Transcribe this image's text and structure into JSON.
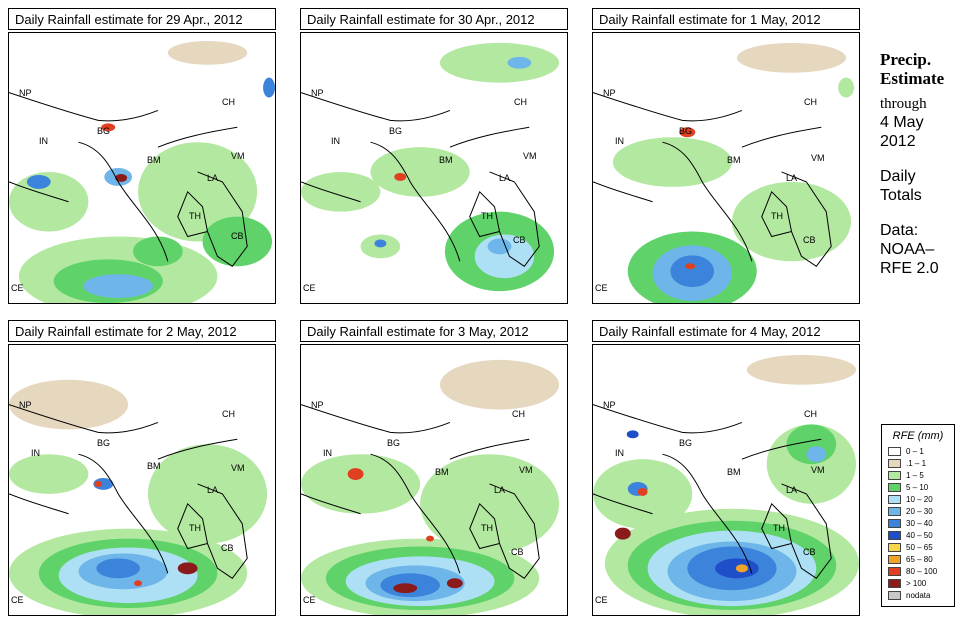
{
  "panels": [
    {
      "title": "Daily Rainfall estimate for  29 Apr., 2012"
    },
    {
      "title": "Daily Rainfall estimate for  30 Apr., 2012"
    },
    {
      "title": "Daily Rainfall estimate for  1 May, 2012"
    },
    {
      "title": "Daily Rainfall estimate for  2 May, 2012"
    },
    {
      "title": "Daily Rainfall estimate for  3 May, 2012"
    },
    {
      "title": "Daily Rainfall estimate for  4 May, 2012"
    }
  ],
  "regions": {
    "np": "NP",
    "in": "IN",
    "bg": "BG",
    "bm": "BM",
    "ch": "CH",
    "vm": "VM",
    "la": "LA",
    "th": "TH",
    "cb": "CB",
    "ce": "CE"
  },
  "side": {
    "heading1": "Precip.",
    "heading2": "Estimate",
    "through": "through",
    "date1": "4 May",
    "date2": "2012",
    "daily1": "Daily",
    "daily2": "Totals",
    "data1": "Data:",
    "data2": "NOAA–",
    "data3": "RFE 2.0"
  },
  "legend": {
    "title": "RFE (mm)",
    "items": [
      {
        "label": "0 – 1",
        "color": "#ffffff"
      },
      {
        "label": ".1 – 1",
        "color": "#e6d7bf"
      },
      {
        "label": "1 – 5",
        "color": "#b3e8a0"
      },
      {
        "label": "5 – 10",
        "color": "#5fd36a"
      },
      {
        "label": "10 – 20",
        "color": "#aee0f5"
      },
      {
        "label": "20 – 30",
        "color": "#6eb6ea"
      },
      {
        "label": "30 – 40",
        "color": "#3c84db"
      },
      {
        "label": "40 – 50",
        "color": "#1f4fc8"
      },
      {
        "label": "50 – 65",
        "color": "#f7d64a"
      },
      {
        "label": "65 – 80",
        "color": "#f2a32a"
      },
      {
        "label": "80 – 100",
        "color": "#e0401f"
      },
      {
        "label": "> 100",
        "color": "#8b1a1a"
      },
      {
        "label": "nodata",
        "color": "#c8c8c8"
      }
    ]
  }
}
